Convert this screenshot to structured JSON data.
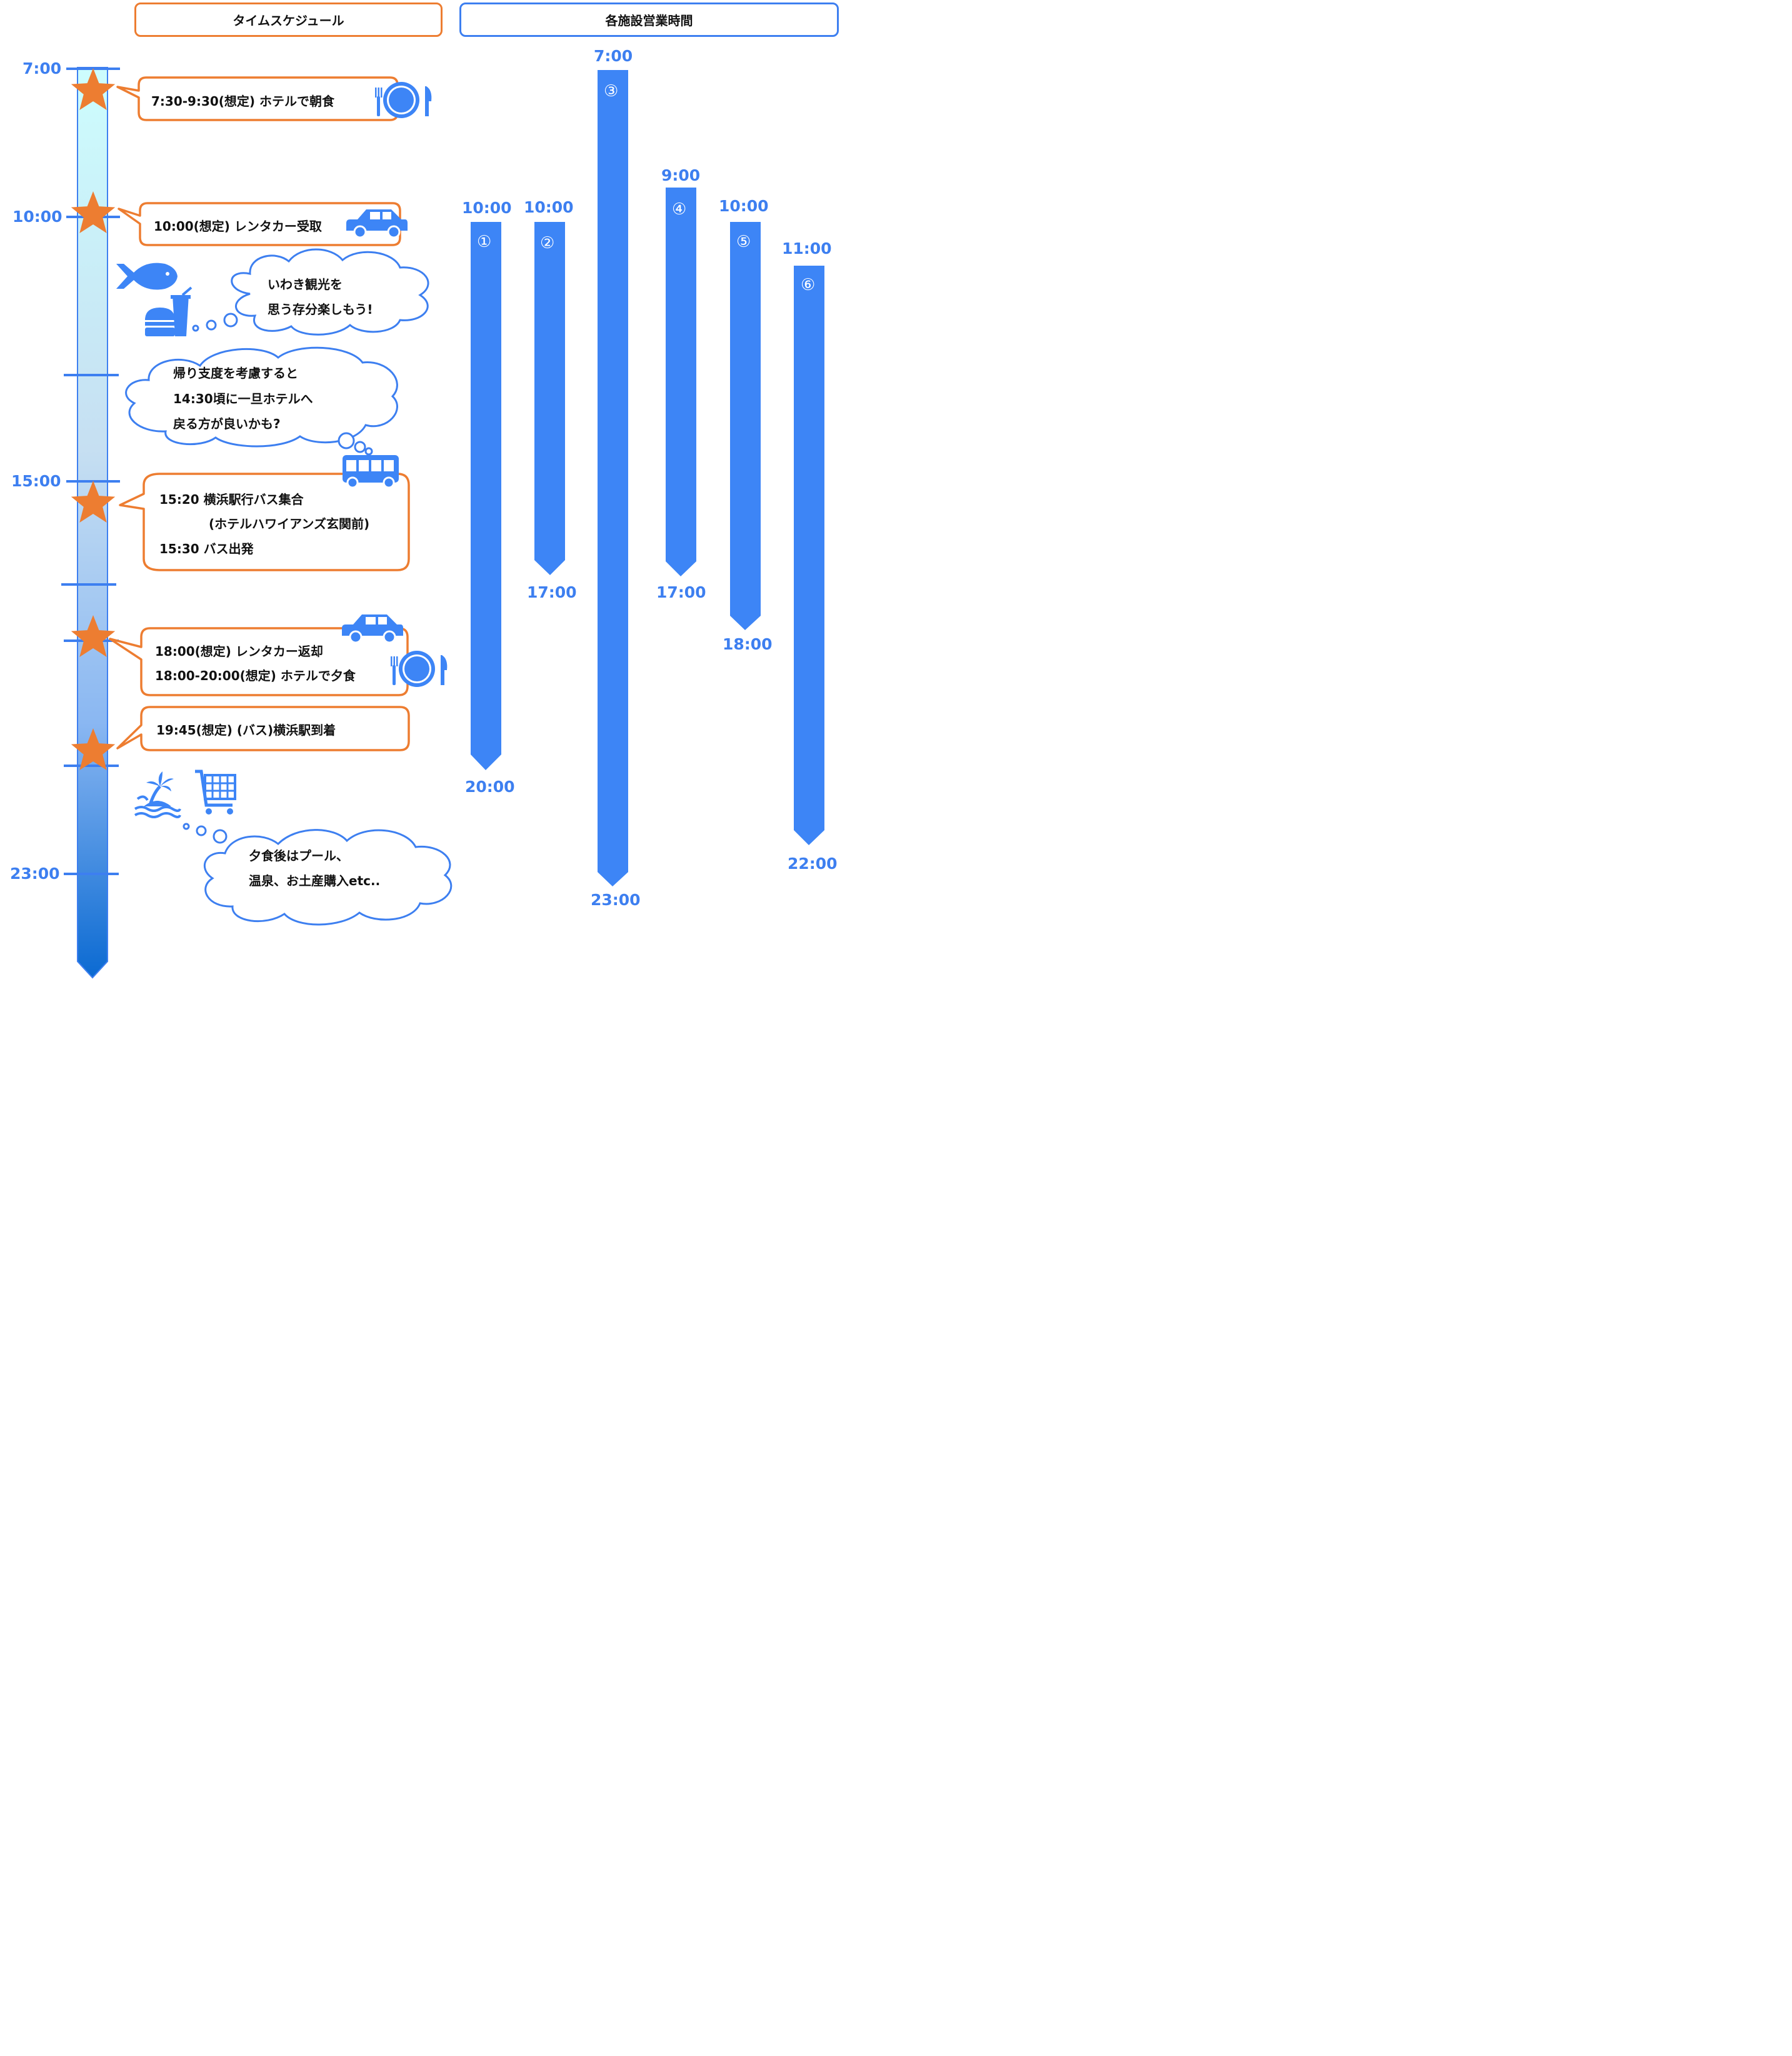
{
  "headers": {
    "schedule": "タイムスケジュール",
    "hours": "各施設営業時間"
  },
  "timeline": {
    "axis_labels": [
      "7:00",
      "10:00",
      "15:00",
      "23:00"
    ],
    "events": [
      {
        "lines": [
          "7:30-9:30(想定) ホテルで朝食"
        ],
        "icons": [
          "plate-cutlery-icon"
        ]
      },
      {
        "lines": [
          "10:00(想定) レンタカー受取"
        ],
        "icons": [
          "car-icon"
        ]
      },
      {
        "lines": [
          "15:20 横浜駅行バス集合",
          "(ホテルハワイアンズ玄関前)",
          "15:30 バス出発"
        ],
        "icons": [
          "bus-icon"
        ]
      },
      {
        "lines": [
          "18:00(想定) レンタカー返却",
          "18:00-20:00(想定) ホテルで夕食"
        ],
        "icons": [
          "car-icon",
          "plate-cutlery-icon"
        ]
      },
      {
        "lines": [
          "19:45(想定) (バス)横浜駅到着"
        ],
        "icons": []
      }
    ],
    "thoughts": [
      {
        "lines": [
          "いわき観光を",
          "思う存分楽しもう!"
        ],
        "icons": [
          "fish-icon",
          "burger-drink-icon"
        ]
      },
      {
        "lines": [
          "帰り支度を考慮すると",
          "14:30頃に一旦ホテルへ",
          "戻る方が良いかも?"
        ],
        "icons": []
      },
      {
        "lines": [
          "夕食後はプール、",
          "温泉、お土産購入etc.."
        ],
        "icons": [
          "island-icon",
          "cart-icon"
        ]
      }
    ]
  },
  "facilities": [
    {
      "num": "①",
      "open": "10:00",
      "close": "20:00"
    },
    {
      "num": "②",
      "open": "10:00",
      "close": "17:00"
    },
    {
      "num": "③",
      "open": "7:00",
      "close": "23:00"
    },
    {
      "num": "④",
      "open": "9:00",
      "close": "17:00"
    },
    {
      "num": "⑤",
      "open": "10:00",
      "close": "18:00"
    },
    {
      "num": "⑥",
      "open": "11:00",
      "close": "22:00"
    }
  ],
  "colors": {
    "accent_orange": "#ed7d31",
    "accent_blue": "#3d7ff0",
    "bar_blue": "#3d85f6",
    "star": "#ed7d31"
  }
}
